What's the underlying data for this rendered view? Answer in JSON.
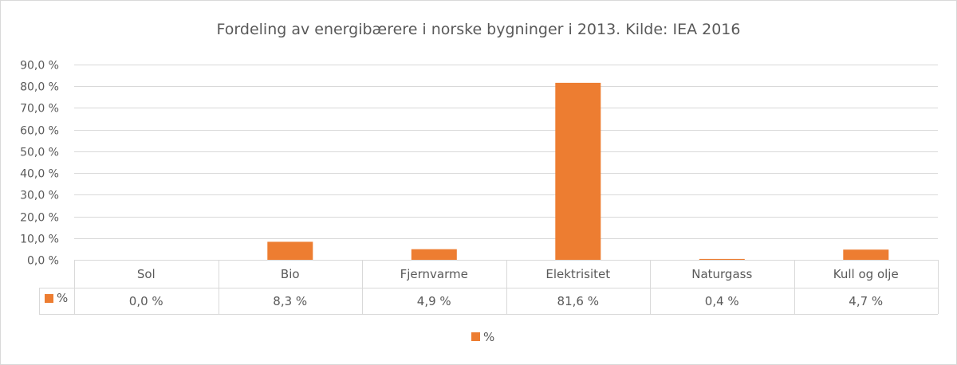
{
  "chart_data": {
    "type": "bar",
    "title": "Fordeling av energibærere i norske bygninger i 2013. Kilde: IEA 2016",
    "categories": [
      "Sol",
      "Bio",
      "Fjernvarme",
      "Elektrisitet",
      "Naturgass",
      "Kull og olje"
    ],
    "series": [
      {
        "name": "%",
        "values": [
          0.0,
          8.3,
          4.9,
          81.6,
          0.4,
          4.7
        ],
        "labels": [
          "0,0 %",
          "8,3 %",
          "4,9 %",
          "81,6 %",
          "0,4 %",
          "4,7 %"
        ],
        "color": "#ED7D31"
      }
    ],
    "ylim": [
      0,
      90
    ],
    "y_ticks": [
      0,
      10,
      20,
      30,
      40,
      50,
      60,
      70,
      80,
      90
    ],
    "y_tick_labels": [
      "0,0 %",
      "10,0 %",
      "20,0 %",
      "30,0 %",
      "40,0 %",
      "50,0 %",
      "60,0 %",
      "70,0 %",
      "80,0 %",
      "90,0 %"
    ],
    "grid": true,
    "data_table": true,
    "legend": {
      "position": "bottom",
      "label": "%"
    },
    "colors": {
      "bar": "#ED7D31",
      "grid": "#D9D9D9",
      "text": "#595959",
      "border": "#D9D9D9"
    }
  }
}
